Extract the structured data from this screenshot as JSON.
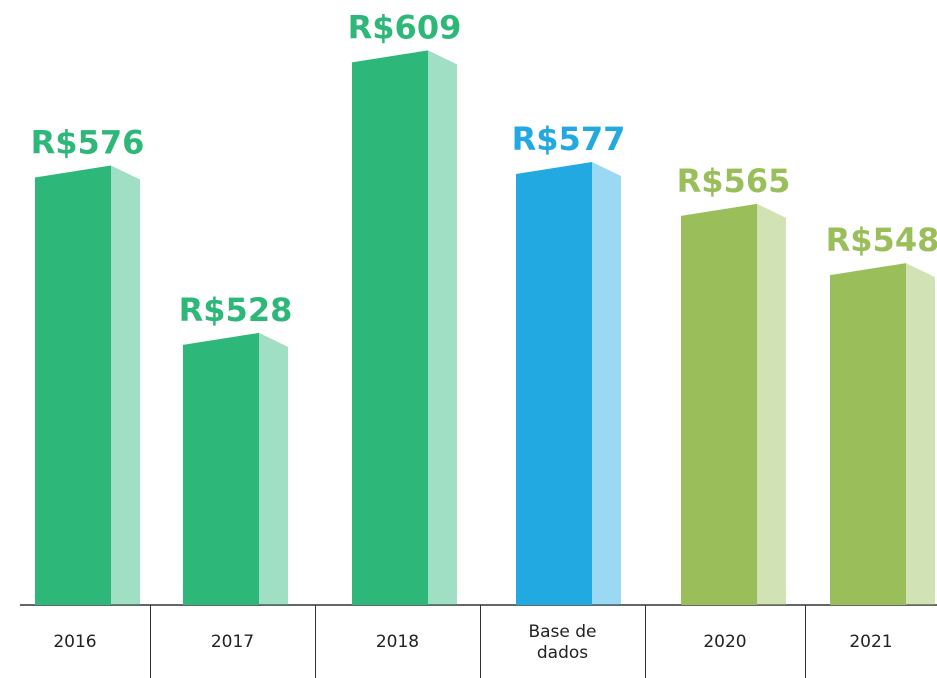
{
  "chart_data": {
    "type": "bar",
    "categories": [
      "2016",
      "2017",
      "2018",
      "Base de dados",
      "2020",
      "2021"
    ],
    "values": [
      576,
      528,
      609,
      577,
      565,
      548
    ],
    "value_labels": [
      "R$576",
      "R$528",
      "R$609",
      "R$577",
      "R$565",
      "R$548"
    ],
    "colors": [
      "#2db87a",
      "#2db87a",
      "#2db87a",
      "#22a9e1",
      "#9abe5a",
      "#9abe5a"
    ],
    "ylim": [
      450,
      620
    ]
  }
}
